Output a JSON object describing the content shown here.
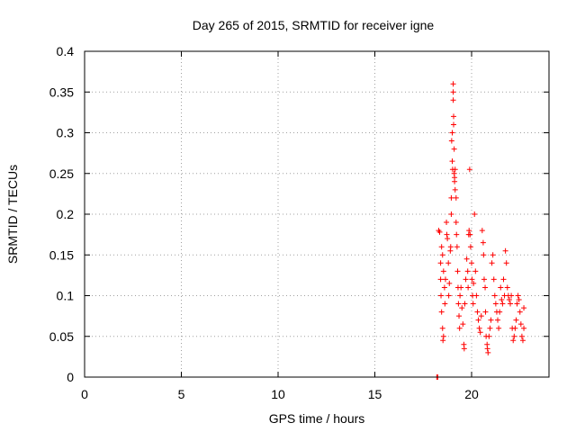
{
  "chart_data": {
    "type": "scatter",
    "title": "Day 265 of 2015, SRMTID for receiver igne",
    "xlabel": "GPS time / hours",
    "ylabel": "SRMTID / TECUs",
    "xlim": [
      0,
      24
    ],
    "ylim": [
      0,
      0.4
    ],
    "xticks": [
      0,
      5,
      10,
      15,
      20
    ],
    "xtick_labels": [
      "0",
      "5",
      "10",
      "15",
      "20"
    ],
    "yticks": [
      0,
      0.05,
      0.1,
      0.15,
      0.2,
      0.25,
      0.3,
      0.35,
      0.4
    ],
    "ytick_labels": [
      "0",
      "0.05",
      "0.1",
      "0.15",
      "0.2",
      "0.25",
      "0.3",
      "0.35",
      "0.4"
    ],
    "grid": true,
    "marker": "+",
    "color": "#ff0000",
    "series": [
      {
        "name": "SRMTID",
        "points": [
          [
            18.2,
            0.0
          ],
          [
            18.25,
            0.0
          ],
          [
            18.3,
            0.18
          ],
          [
            18.35,
            0.178
          ],
          [
            18.4,
            0.12
          ],
          [
            18.42,
            0.1
          ],
          [
            18.45,
            0.08
          ],
          [
            18.5,
            0.06
          ],
          [
            18.52,
            0.045
          ],
          [
            18.55,
            0.05
          ],
          [
            18.4,
            0.14
          ],
          [
            18.45,
            0.16
          ],
          [
            18.5,
            0.15
          ],
          [
            18.55,
            0.13
          ],
          [
            18.6,
            0.11
          ],
          [
            18.62,
            0.09
          ],
          [
            18.65,
            0.12
          ],
          [
            18.7,
            0.19
          ],
          [
            18.72,
            0.175
          ],
          [
            18.75,
            0.17
          ],
          [
            18.8,
            0.14
          ],
          [
            18.82,
            0.1
          ],
          [
            18.85,
            0.115
          ],
          [
            18.9,
            0.155
          ],
          [
            18.92,
            0.16
          ],
          [
            18.95,
            0.2
          ],
          [
            18.95,
            0.22
          ],
          [
            18.97,
            0.29
          ],
          [
            19.0,
            0.3
          ],
          [
            19.0,
            0.265
          ],
          [
            19.02,
            0.255
          ],
          [
            19.05,
            0.36
          ],
          [
            19.05,
            0.35
          ],
          [
            19.05,
            0.34
          ],
          [
            19.07,
            0.32
          ],
          [
            19.07,
            0.31
          ],
          [
            19.1,
            0.28
          ],
          [
            19.1,
            0.25
          ],
          [
            19.12,
            0.245
          ],
          [
            19.12,
            0.24
          ],
          [
            19.15,
            0.255
          ],
          [
            19.15,
            0.23
          ],
          [
            19.2,
            0.22
          ],
          [
            19.2,
            0.19
          ],
          [
            19.22,
            0.175
          ],
          [
            19.25,
            0.16
          ],
          [
            19.28,
            0.13
          ],
          [
            19.3,
            0.11
          ],
          [
            19.32,
            0.09
          ],
          [
            19.35,
            0.075
          ],
          [
            19.38,
            0.06
          ],
          [
            19.4,
            0.1
          ],
          [
            19.45,
            0.11
          ],
          [
            19.5,
            0.085
          ],
          [
            19.55,
            0.065
          ],
          [
            19.6,
            0.04
          ],
          [
            19.62,
            0.035
          ],
          [
            19.65,
            0.09
          ],
          [
            19.7,
            0.12
          ],
          [
            19.75,
            0.145
          ],
          [
            19.8,
            0.13
          ],
          [
            19.82,
            0.11
          ],
          [
            19.85,
            0.175
          ],
          [
            19.87,
            0.18
          ],
          [
            19.9,
            0.255
          ],
          [
            19.92,
            0.175
          ],
          [
            19.95,
            0.16
          ],
          [
            20.0,
            0.14
          ],
          [
            20.02,
            0.12
          ],
          [
            20.05,
            0.1
          ],
          [
            20.08,
            0.09
          ],
          [
            20.1,
            0.115
          ],
          [
            20.15,
            0.2
          ],
          [
            20.2,
            0.13
          ],
          [
            20.25,
            0.1
          ],
          [
            20.3,
            0.08
          ],
          [
            20.35,
            0.07
          ],
          [
            20.4,
            0.06
          ],
          [
            20.45,
            0.055
          ],
          [
            20.5,
            0.075
          ],
          [
            20.55,
            0.18
          ],
          [
            20.6,
            0.165
          ],
          [
            20.62,
            0.15
          ],
          [
            20.65,
            0.12
          ],
          [
            20.7,
            0.11
          ],
          [
            20.72,
            0.08
          ],
          [
            20.75,
            0.05
          ],
          [
            20.8,
            0.04
          ],
          [
            20.82,
            0.035
          ],
          [
            20.85,
            0.03
          ],
          [
            20.9,
            0.05
          ],
          [
            20.95,
            0.06
          ],
          [
            21.0,
            0.07
          ],
          [
            21.05,
            0.14
          ],
          [
            21.1,
            0.15
          ],
          [
            21.15,
            0.12
          ],
          [
            21.2,
            0.1
          ],
          [
            21.25,
            0.09
          ],
          [
            21.3,
            0.08
          ],
          [
            21.35,
            0.07
          ],
          [
            21.4,
            0.06
          ],
          [
            21.45,
            0.08
          ],
          [
            21.5,
            0.11
          ],
          [
            21.55,
            0.095
          ],
          [
            21.6,
            0.09
          ],
          [
            21.65,
            0.12
          ],
          [
            21.7,
            0.1
          ],
          [
            21.75,
            0.155
          ],
          [
            21.8,
            0.14
          ],
          [
            21.85,
            0.11
          ],
          [
            21.9,
            0.1
          ],
          [
            21.95,
            0.095
          ],
          [
            22.0,
            0.09
          ],
          [
            22.05,
            0.1
          ],
          [
            22.1,
            0.06
          ],
          [
            22.15,
            0.045
          ],
          [
            22.2,
            0.05
          ],
          [
            22.25,
            0.06
          ],
          [
            22.3,
            0.07
          ],
          [
            22.35,
            0.09
          ],
          [
            22.4,
            0.1
          ],
          [
            22.45,
            0.095
          ],
          [
            22.5,
            0.08
          ],
          [
            22.55,
            0.065
          ],
          [
            22.6,
            0.05
          ],
          [
            22.65,
            0.045
          ],
          [
            22.7,
            0.06
          ],
          [
            22.7,
            0.085
          ]
        ]
      }
    ]
  }
}
